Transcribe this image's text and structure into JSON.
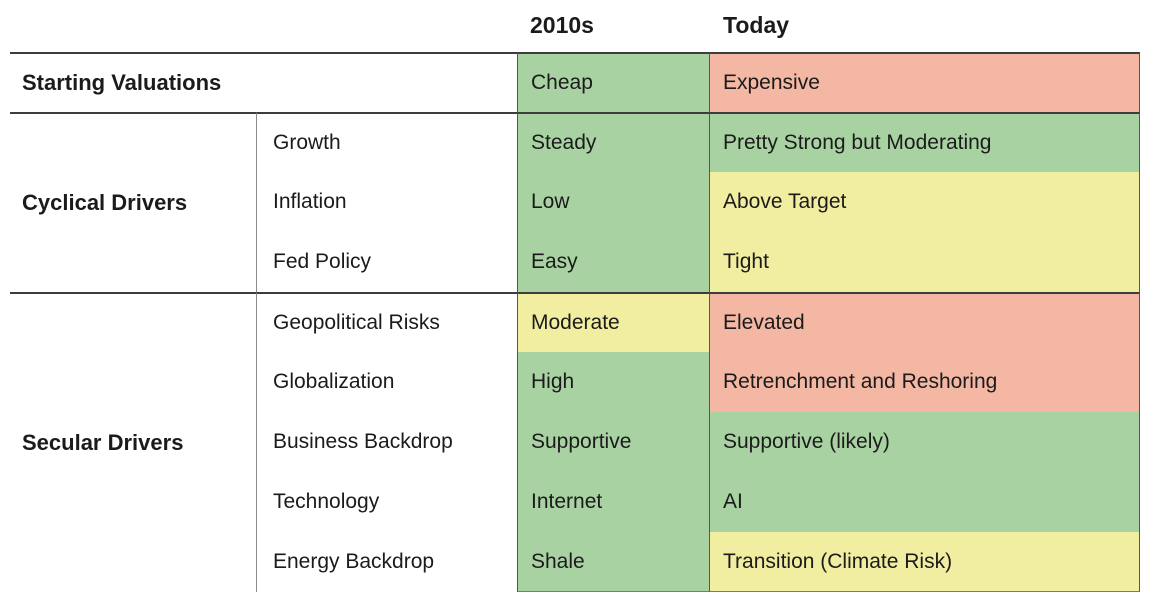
{
  "chart_data": {
    "type": "table",
    "columns": {
      "col_2010s": "2010s",
      "col_today": "Today"
    },
    "groups": {
      "starting": "Starting Valuations",
      "cyclical": "Cyclical Drivers",
      "secular": "Secular Drivers"
    },
    "status_colors": {
      "green": "#a9d2a3",
      "yellow": "#f2eea1",
      "red": "#f3b7a4"
    },
    "rows": [
      {
        "group": "Starting Valuations",
        "label2010s": "Cheap",
        "status2010s": "green",
        "labelToday": "Expensive",
        "statusToday": "red"
      },
      {
        "group": "Cyclical Drivers",
        "driver": "Growth",
        "label2010s": "Steady",
        "status2010s": "green",
        "labelToday": "Pretty Strong but Moderating",
        "statusToday": "green"
      },
      {
        "group": "Cyclical Drivers",
        "driver": "Inflation",
        "label2010s": "Low",
        "status2010s": "green",
        "labelToday": "Above Target",
        "statusToday": "yellow"
      },
      {
        "group": "Cyclical Drivers",
        "driver": "Fed Policy",
        "label2010s": "Easy",
        "status2010s": "green",
        "labelToday": "Tight",
        "statusToday": "yellow"
      },
      {
        "group": "Secular Drivers",
        "driver": "Geopolitical Risks",
        "label2010s": "Moderate",
        "status2010s": "yellow",
        "labelToday": "Elevated",
        "statusToday": "red"
      },
      {
        "group": "Secular Drivers",
        "driver": "Globalization",
        "label2010s": "High",
        "status2010s": "green",
        "labelToday": "Retrenchment and Reshoring",
        "statusToday": "red"
      },
      {
        "group": "Secular Drivers",
        "driver": "Business Backdrop",
        "label2010s": "Supportive",
        "status2010s": "green",
        "labelToday": "Supportive (likely)",
        "statusToday": "green"
      },
      {
        "group": "Secular Drivers",
        "driver": "Technology",
        "label2010s": "Internet",
        "status2010s": "green",
        "labelToday": "AI",
        "statusToday": "green"
      },
      {
        "group": "Secular Drivers",
        "driver": "Energy Backdrop",
        "label2010s": "Shale",
        "status2010s": "green",
        "labelToday": "Transition (Climate Risk)",
        "statusToday": "yellow"
      }
    ]
  }
}
